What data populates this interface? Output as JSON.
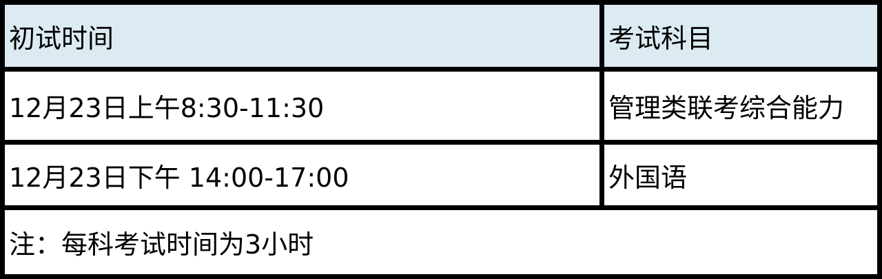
{
  "table": {
    "header": [
      "初试时间",
      "考试科目"
    ],
    "rows": [
      [
        "12月23日上午8:30-11:30",
        "管理类联考综合能力"
      ],
      [
        "12月23日下午 14:00-17:00",
        "外国语"
      ]
    ],
    "note": "注：每科考试时间为3小时"
  },
  "colors": {
    "header_bg": "#dcebf2",
    "border": "#000000"
  }
}
